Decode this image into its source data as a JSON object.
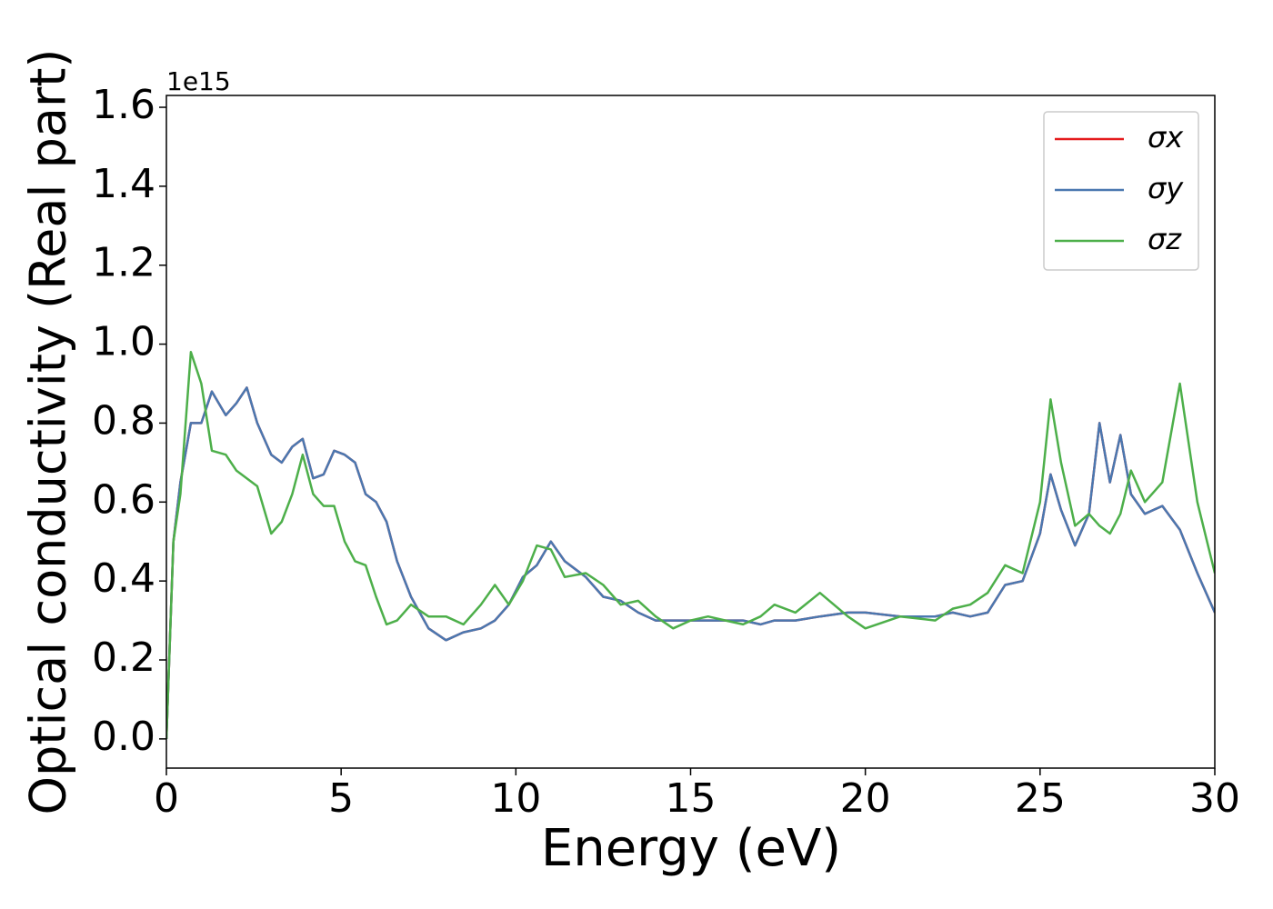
{
  "chart_data": {
    "type": "line",
    "xlabel": "Energy (eV)",
    "ylabel": "Optical conductivity (Real part)",
    "y_offset_label": "1e15",
    "x": [
      0,
      0.2,
      0.4,
      0.7,
      1.0,
      1.3,
      1.7,
      2.0,
      2.3,
      2.6,
      3.0,
      3.3,
      3.6,
      3.9,
      4.2,
      4.5,
      4.8,
      5.1,
      5.4,
      5.7,
      6.0,
      6.3,
      6.6,
      7.0,
      7.5,
      8.0,
      8.5,
      9.0,
      9.4,
      9.8,
      10.2,
      10.6,
      11.0,
      11.4,
      12.0,
      12.5,
      13.0,
      13.5,
      14.0,
      14.5,
      15.0,
      15.5,
      16.0,
      16.5,
      17.0,
      17.4,
      18.0,
      18.7,
      19.5,
      20.0,
      21.0,
      22.0,
      22.5,
      23.0,
      23.5,
      24.0,
      24.5,
      25.0,
      25.3,
      25.6,
      26.0,
      26.4,
      26.7,
      27.0,
      27.3,
      27.6,
      28.0,
      28.5,
      29.0,
      29.5,
      30.0
    ],
    "series": [
      {
        "name": "σx",
        "color": "#e41a1c",
        "values": [
          0.0,
          0.5,
          0.65,
          0.8,
          0.8,
          0.88,
          0.82,
          0.85,
          0.89,
          0.8,
          0.72,
          0.7,
          0.74,
          0.76,
          0.66,
          0.67,
          0.73,
          0.72,
          0.7,
          0.62,
          0.6,
          0.55,
          0.45,
          0.36,
          0.28,
          0.25,
          0.27,
          0.28,
          0.3,
          0.34,
          0.41,
          0.44,
          0.5,
          0.45,
          0.41,
          0.36,
          0.35,
          0.32,
          0.3,
          0.3,
          0.3,
          0.3,
          0.3,
          0.3,
          0.29,
          0.3,
          0.3,
          0.31,
          0.32,
          0.32,
          0.31,
          0.31,
          0.32,
          0.31,
          0.32,
          0.39,
          0.4,
          0.52,
          0.67,
          0.58,
          0.49,
          0.57,
          0.8,
          0.65,
          0.77,
          0.62,
          0.57,
          0.59,
          0.53,
          0.42,
          0.32
        ]
      },
      {
        "name": "σy",
        "color": "#4a78b0",
        "values": [
          0.0,
          0.5,
          0.65,
          0.8,
          0.8,
          0.88,
          0.82,
          0.85,
          0.89,
          0.8,
          0.72,
          0.7,
          0.74,
          0.76,
          0.66,
          0.67,
          0.73,
          0.72,
          0.7,
          0.62,
          0.6,
          0.55,
          0.45,
          0.36,
          0.28,
          0.25,
          0.27,
          0.28,
          0.3,
          0.34,
          0.41,
          0.44,
          0.5,
          0.45,
          0.41,
          0.36,
          0.35,
          0.32,
          0.3,
          0.3,
          0.3,
          0.3,
          0.3,
          0.3,
          0.29,
          0.3,
          0.3,
          0.31,
          0.32,
          0.32,
          0.31,
          0.31,
          0.32,
          0.31,
          0.32,
          0.39,
          0.4,
          0.52,
          0.67,
          0.58,
          0.49,
          0.57,
          0.8,
          0.65,
          0.77,
          0.62,
          0.57,
          0.59,
          0.53,
          0.42,
          0.32
        ]
      },
      {
        "name": "σz",
        "color": "#4daf4a",
        "values": [
          0.0,
          0.5,
          0.62,
          0.98,
          0.9,
          0.73,
          0.72,
          0.68,
          0.66,
          0.64,
          0.52,
          0.55,
          0.62,
          0.72,
          0.62,
          0.59,
          0.59,
          0.5,
          0.45,
          0.44,
          0.36,
          0.29,
          0.3,
          0.34,
          0.31,
          0.31,
          0.29,
          0.34,
          0.39,
          0.34,
          0.4,
          0.49,
          0.48,
          0.41,
          0.42,
          0.39,
          0.34,
          0.35,
          0.31,
          0.28,
          0.3,
          0.31,
          0.3,
          0.29,
          0.31,
          0.34,
          0.32,
          0.37,
          0.31,
          0.28,
          0.31,
          0.3,
          0.33,
          0.34,
          0.37,
          0.44,
          0.42,
          0.6,
          0.86,
          0.7,
          0.54,
          0.57,
          0.54,
          0.52,
          0.57,
          0.68,
          0.6,
          0.65,
          0.9,
          0.6,
          0.42
        ]
      }
    ],
    "xlim": [
      0,
      30
    ],
    "xticks": [
      0,
      5,
      10,
      15,
      20,
      25,
      30
    ],
    "ylim": [
      -0.074,
      1.63
    ],
    "yticks": [
      {
        "value": 0,
        "label": "0.0"
      },
      0.2,
      0.4,
      0.6,
      0.8,
      {
        "value": 1,
        "label": "1.0"
      },
      1.2,
      1.4,
      1.6
    ],
    "legend": "upper right",
    "grid": false
  }
}
